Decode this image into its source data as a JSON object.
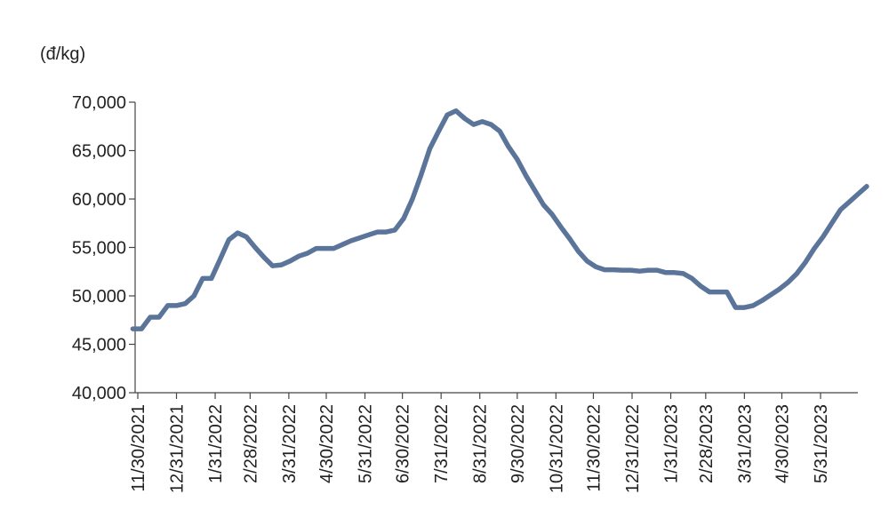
{
  "chart_data": {
    "type": "line",
    "title": "",
    "unit_label": "(đ/kg)",
    "xlabel": "",
    "ylabel": "",
    "ylim": [
      40000,
      70000
    ],
    "y_ticks": [
      40000,
      45000,
      50000,
      55000,
      60000,
      65000,
      70000
    ],
    "y_tick_labels": [
      "40,000",
      "45,000",
      "50,000",
      "55,000",
      "60,000",
      "65,000",
      "70,000"
    ],
    "x_tick_labels": [
      "11/30/2021",
      "12/31/2021",
      "1/31/2022",
      "2/28/2022",
      "3/31/2022",
      "4/30/2022",
      "5/31/2022",
      "6/30/2022",
      "7/31/2022",
      "8/31/2022",
      "9/30/2022",
      "10/31/2022",
      "11/30/2022",
      "12/31/2022",
      "1/31/2023",
      "2/28/2023",
      "3/31/2023",
      "4/30/2023",
      "5/31/2023"
    ],
    "grid": false,
    "legend": "none",
    "line_color": "#5b7499",
    "series": [
      {
        "x": [
          "2021-11-26",
          "2021-12-03",
          "2021-12-10",
          "2021-12-17",
          "2021-12-24",
          "2021-12-31",
          "2022-01-07",
          "2022-01-14",
          "2022-01-21",
          "2022-01-28",
          "2022-02-04",
          "2022-02-11",
          "2022-02-18",
          "2022-02-25",
          "2022-03-04",
          "2022-03-11",
          "2022-03-18",
          "2022-03-25",
          "2022-04-01",
          "2022-04-08",
          "2022-04-15",
          "2022-04-22",
          "2022-04-29",
          "2022-05-06",
          "2022-05-13",
          "2022-05-20",
          "2022-05-27",
          "2022-06-03",
          "2022-06-10",
          "2022-06-17",
          "2022-06-24",
          "2022-07-01",
          "2022-07-08",
          "2022-07-15",
          "2022-07-22",
          "2022-07-29",
          "2022-08-05",
          "2022-08-12",
          "2022-08-19",
          "2022-08-26",
          "2022-09-02",
          "2022-09-09",
          "2022-09-16",
          "2022-09-23",
          "2022-09-30",
          "2022-10-07",
          "2022-10-14",
          "2022-10-21",
          "2022-10-28",
          "2022-11-04",
          "2022-11-11",
          "2022-11-18",
          "2022-11-25",
          "2022-12-02",
          "2022-12-09",
          "2022-12-16",
          "2022-12-23",
          "2022-12-30",
          "2023-01-06",
          "2023-01-13",
          "2023-01-20",
          "2023-01-27",
          "2023-02-03",
          "2023-02-10",
          "2023-02-17",
          "2023-02-24",
          "2023-03-03",
          "2023-03-10",
          "2023-03-17",
          "2023-03-24",
          "2023-03-31",
          "2023-04-07",
          "2023-04-14",
          "2023-04-21",
          "2023-04-28",
          "2023-05-05",
          "2023-05-12",
          "2023-05-19",
          "2023-05-26",
          "2023-06-02",
          "2023-06-09",
          "2023-06-16",
          "2023-06-23",
          "2023-06-30",
          "2023-07-07"
        ],
        "values": [
          46600,
          46600,
          47800,
          47800,
          49000,
          49000,
          49200,
          50000,
          51800,
          51800,
          53800,
          55800,
          56500,
          56100,
          55000,
          54000,
          53100,
          53200,
          53600,
          54100,
          54400,
          54900,
          54900,
          54900,
          55300,
          55700,
          56000,
          56300,
          56600,
          56600,
          56800,
          58000,
          60000,
          62500,
          65200,
          67000,
          68700,
          69100,
          68300,
          67700,
          68000,
          67700,
          67000,
          65400,
          64100,
          62400,
          60900,
          59400,
          58400,
          57100,
          55900,
          54600,
          53600,
          53000,
          52700,
          52700,
          52650,
          52650,
          52550,
          52650,
          52650,
          52400,
          52400,
          52300,
          51800,
          51000,
          50400,
          50400,
          50400,
          48800,
          48800,
          49000,
          49500,
          50100,
          50700,
          51400,
          52300,
          53500,
          54900,
          56100,
          57500,
          58900,
          59700,
          60500,
          61300
        ]
      }
    ]
  }
}
